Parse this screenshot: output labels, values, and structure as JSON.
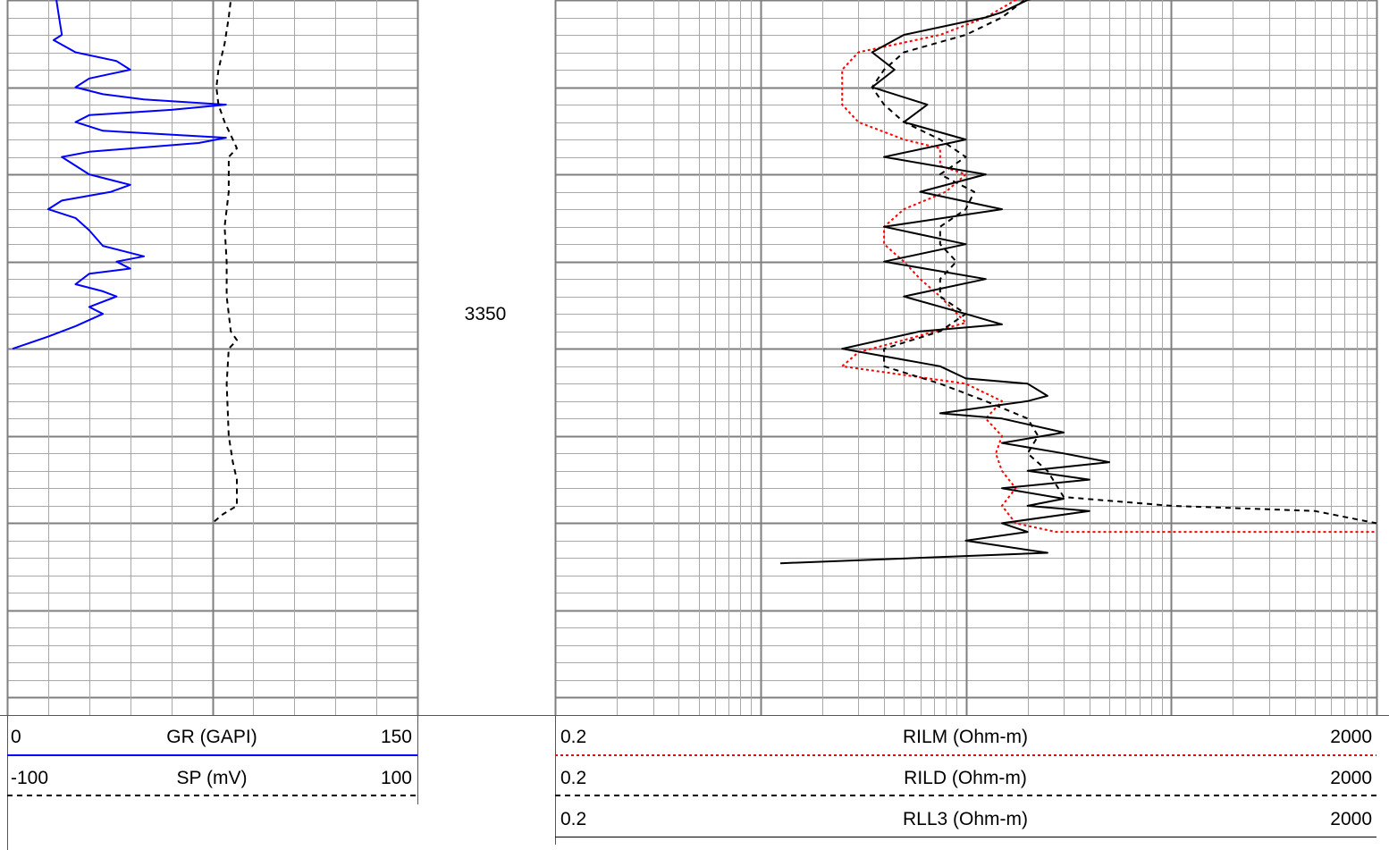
{
  "depth_track": {
    "labels": [
      "3350"
    ],
    "depth_range": [
      3313,
      3354
    ],
    "label_depth": 3350
  },
  "track1": {
    "curves": [
      {
        "id": "gr",
        "name": "GR (GAPI)",
        "min": "0",
        "max": "150",
        "color": "#0000ff",
        "style": "solid"
      },
      {
        "id": "sp",
        "name": "SP (mV)",
        "min": "-100",
        "max": "100",
        "color": "#000000",
        "style": "dashed"
      }
    ]
  },
  "track2": {
    "scale": "logarithmic",
    "curves": [
      {
        "id": "rilm",
        "name": "RILM (Ohm-m)",
        "min": "0.2",
        "max": "2000",
        "color": "#ff0000",
        "style": "dotted"
      },
      {
        "id": "rild",
        "name": "RILD (Ohm-m)",
        "min": "0.2",
        "max": "2000",
        "color": "#000000",
        "style": "dashed"
      },
      {
        "id": "rll3",
        "name": "RLL3 (Ohm-m)",
        "min": "0.2",
        "max": "2000",
        "color": "#000000",
        "style": "solid"
      }
    ]
  },
  "chart_data": {
    "type": "line",
    "depth_axis": "3350",
    "series": [
      {
        "name": "GR (GAPI)",
        "x_range": [
          0,
          150
        ],
        "points": [
          [
            18,
            0
          ],
          [
            19,
            1
          ],
          [
            20,
            2
          ],
          [
            17,
            2.3
          ],
          [
            25,
            3
          ],
          [
            40,
            3.5
          ],
          [
            45,
            4
          ],
          [
            30,
            4.5
          ],
          [
            25,
            5
          ],
          [
            35,
            5.4
          ],
          [
            50,
            5.7
          ],
          [
            80,
            6
          ],
          [
            60,
            6.3
          ],
          [
            30,
            6.6
          ],
          [
            25,
            7
          ],
          [
            35,
            7.5
          ],
          [
            80,
            7.9
          ],
          [
            70,
            8.2
          ],
          [
            30,
            8.7
          ],
          [
            20,
            9
          ],
          [
            25,
            9.5
          ],
          [
            30,
            10
          ],
          [
            45,
            10.6
          ],
          [
            38,
            11
          ],
          [
            20,
            11.5
          ],
          [
            15,
            12
          ],
          [
            25,
            12.5
          ],
          [
            30,
            13.2
          ],
          [
            35,
            14.1
          ],
          [
            50,
            14.7
          ],
          [
            40,
            15
          ],
          [
            45,
            15.4
          ],
          [
            30,
            15.7
          ],
          [
            25,
            16.3
          ],
          [
            35,
            16.7
          ],
          [
            40,
            17
          ],
          [
            30,
            17.6
          ],
          [
            35,
            18
          ],
          [
            25,
            18.7
          ],
          [
            15,
            19.3
          ],
          [
            2,
            20
          ]
        ]
      },
      {
        "name": "SP (mV)",
        "x_range": [
          -100,
          100
        ],
        "points": [
          [
            10,
            -1
          ],
          [
            8,
            1
          ],
          [
            6,
            2.5
          ],
          [
            3,
            4
          ],
          [
            2,
            5
          ],
          [
            3,
            6
          ],
          [
            6,
            7
          ],
          [
            10,
            8
          ],
          [
            12,
            8.5
          ],
          [
            8,
            9
          ],
          [
            8,
            11
          ],
          [
            6,
            13
          ],
          [
            7,
            15
          ],
          [
            7,
            17
          ],
          [
            9,
            19
          ],
          [
            12,
            19.5
          ],
          [
            8,
            20
          ],
          [
            7,
            22
          ],
          [
            8,
            25
          ],
          [
            10,
            26.5
          ],
          [
            12,
            27.5
          ],
          [
            12,
            29
          ],
          [
            5,
            29.5
          ],
          [
            0,
            30
          ]
        ]
      },
      {
        "name": "RILM (Ohm-m)",
        "x_range": [
          0.2,
          2000
        ],
        "points": [
          [
            40,
            -1
          ],
          [
            42,
            -0.6
          ],
          [
            35,
            0
          ],
          [
            25,
            1
          ],
          [
            15,
            2
          ],
          [
            6,
            3
          ],
          [
            5,
            4
          ],
          [
            5,
            5
          ],
          [
            5,
            6
          ],
          [
            6,
            7
          ],
          [
            10,
            8
          ],
          [
            15,
            8.5
          ],
          [
            15,
            9.5
          ],
          [
            20,
            10
          ],
          [
            16,
            11
          ],
          [
            10,
            12
          ],
          [
            8,
            13
          ],
          [
            8,
            14
          ],
          [
            10,
            15
          ],
          [
            12,
            16
          ],
          [
            15,
            17
          ],
          [
            20,
            18.5
          ],
          [
            10,
            19.5
          ],
          [
            6,
            20.2
          ],
          [
            5,
            21
          ],
          [
            10,
            21.5
          ],
          [
            20,
            22
          ],
          [
            30,
            23
          ],
          [
            25,
            24
          ],
          [
            30,
            25
          ],
          [
            28,
            26
          ],
          [
            30,
            27
          ],
          [
            35,
            28
          ],
          [
            30,
            29
          ],
          [
            35,
            30
          ],
          [
            55,
            30.5
          ],
          [
            300,
            30.5
          ],
          [
            2000,
            30.5
          ]
        ]
      },
      {
        "name": "RILD (Ohm-m)",
        "x_range": [
          0.2,
          2000
        ],
        "points": [
          [
            50,
            -1
          ],
          [
            45,
            -0.6
          ],
          [
            30,
            1
          ],
          [
            20,
            2
          ],
          [
            10,
            3
          ],
          [
            8,
            4
          ],
          [
            7,
            5
          ],
          [
            8,
            6
          ],
          [
            10,
            7
          ],
          [
            15,
            8
          ],
          [
            20,
            9
          ],
          [
            15,
            10
          ],
          [
            22,
            11
          ],
          [
            20,
            12
          ],
          [
            15,
            13
          ],
          [
            15,
            14
          ],
          [
            18,
            15
          ],
          [
            15,
            16
          ],
          [
            15,
            17
          ],
          [
            20,
            18
          ],
          [
            15,
            19
          ],
          [
            8,
            20
          ],
          [
            8,
            21
          ],
          [
            15,
            22
          ],
          [
            25,
            23
          ],
          [
            40,
            24
          ],
          [
            45,
            25
          ],
          [
            40,
            26
          ],
          [
            50,
            27
          ],
          [
            60,
            28.5
          ],
          [
            200,
            29
          ],
          [
            1000,
            29.3
          ],
          [
            2000,
            30
          ]
        ]
      },
      {
        "name": "RLL3 (Ohm-m)",
        "x_range": [
          0.2,
          2000
        ],
        "points": [
          [
            80,
            -1
          ],
          [
            50,
            -0.3
          ],
          [
            40,
            0
          ],
          [
            30,
            0.7
          ],
          [
            25,
            1
          ],
          [
            10,
            2
          ],
          [
            7,
            3
          ],
          [
            9,
            4
          ],
          [
            7,
            5
          ],
          [
            13,
            6
          ],
          [
            10,
            7
          ],
          [
            20,
            8
          ],
          [
            8,
            9
          ],
          [
            25,
            10
          ],
          [
            12,
            11
          ],
          [
            30,
            12
          ],
          [
            8,
            13
          ],
          [
            20,
            14
          ],
          [
            8,
            15
          ],
          [
            25,
            16
          ],
          [
            10,
            17
          ],
          [
            20,
            18
          ],
          [
            30,
            18.6
          ],
          [
            12,
            19
          ],
          [
            5,
            20
          ],
          [
            15,
            21
          ],
          [
            20,
            21.7
          ],
          [
            40,
            22
          ],
          [
            50,
            22.7
          ],
          [
            40,
            23
          ],
          [
            15,
            23.7
          ],
          [
            30,
            24
          ],
          [
            60,
            24.8
          ],
          [
            30,
            25.4
          ],
          [
            60,
            26
          ],
          [
            100,
            26.5
          ],
          [
            40,
            27
          ],
          [
            80,
            27.5
          ],
          [
            30,
            28
          ],
          [
            60,
            28.6
          ],
          [
            40,
            29
          ],
          [
            80,
            29.3
          ],
          [
            30,
            30
          ],
          [
            40,
            30.5
          ],
          [
            20,
            31
          ],
          [
            50,
            31.7
          ],
          [
            2.5,
            32.3
          ]
        ]
      }
    ]
  }
}
